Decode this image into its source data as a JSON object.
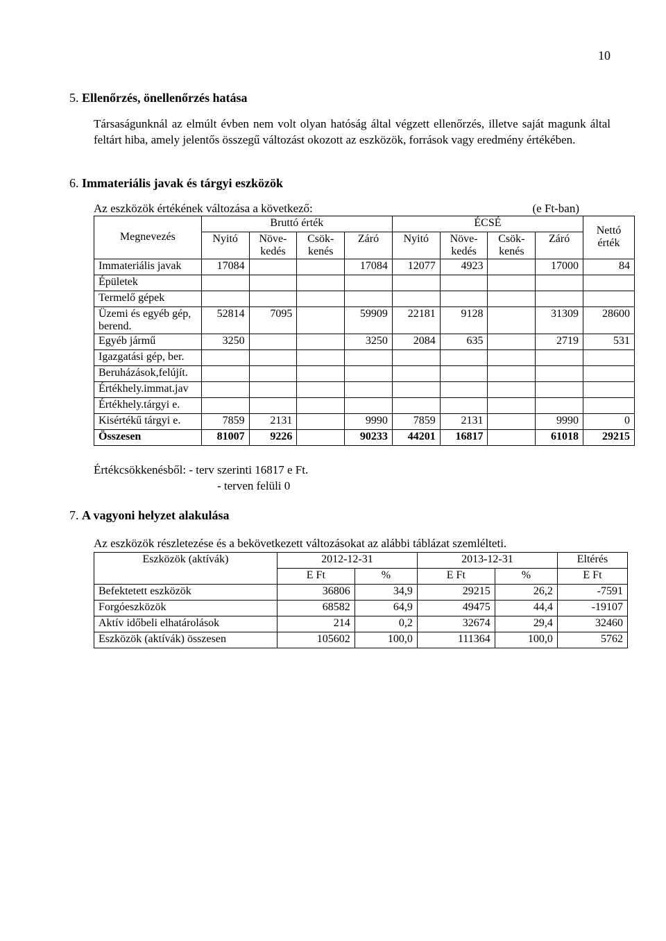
{
  "page_number": "10",
  "section5": {
    "number": "5.",
    "title": "Ellenőrzés, önellenőrzés hatása",
    "paragraph": "Társaságunknál az elmúlt évben nem volt olyan hatóság által végzett ellenőrzés, illetve saját magunk által feltárt hiba, amely jelentős összegű változást okozott az eszközök, források vagy eredmény értékében."
  },
  "section6": {
    "number": "6.",
    "title": "Immateriális javak és tárgyi eszközök",
    "intro": "Az eszközök értékének változása a következő:",
    "unit": "(e Ft-ban)",
    "headers": {
      "megnevezes": "Megnevezés",
      "brutto": "Bruttó érték",
      "ecse": "ÉCSÉ",
      "netto": "Nettó érték",
      "nyito": "Nyitó",
      "nove": "Növe-kedés",
      "csok": "Csök-kenés",
      "zaro": "Záró"
    },
    "rows": [
      {
        "label": "Immateriális javak",
        "b_ny": "17084",
        "b_no": "",
        "b_cs": "",
        "b_za": "17084",
        "e_ny": "12077",
        "e_no": "4923",
        "e_cs": "",
        "e_za": "17000",
        "netto": "84"
      },
      {
        "label": "Épületek",
        "b_ny": "",
        "b_no": "",
        "b_cs": "",
        "b_za": "",
        "e_ny": "",
        "e_no": "",
        "e_cs": "",
        "e_za": "",
        "netto": ""
      },
      {
        "label": "Termelő gépek",
        "b_ny": "",
        "b_no": "",
        "b_cs": "",
        "b_za": "",
        "e_ny": "",
        "e_no": "",
        "e_cs": "",
        "e_za": "",
        "netto": ""
      },
      {
        "label": "Üzemi és egyéb gép, berend.",
        "b_ny": "52814",
        "b_no": "7095",
        "b_cs": "",
        "b_za": "59909",
        "e_ny": "22181",
        "e_no": "9128",
        "e_cs": "",
        "e_za": "31309",
        "netto": "28600"
      },
      {
        "label": "Egyéb jármű",
        "b_ny": "3250",
        "b_no": "",
        "b_cs": "",
        "b_za": "3250",
        "e_ny": "2084",
        "e_no": "635",
        "e_cs": "",
        "e_za": "2719",
        "netto": "531"
      },
      {
        "label": "Igazgatási gép, ber.",
        "b_ny": "",
        "b_no": "",
        "b_cs": "",
        "b_za": "",
        "e_ny": "",
        "e_no": "",
        "e_cs": "",
        "e_za": "",
        "netto": ""
      },
      {
        "label": "Beruházások,felújít.",
        "b_ny": "",
        "b_no": "",
        "b_cs": "",
        "b_za": "",
        "e_ny": "",
        "e_no": "",
        "e_cs": "",
        "e_za": "",
        "netto": ""
      },
      {
        "label": "Értékhely.immat.jav",
        "b_ny": "",
        "b_no": "",
        "b_cs": "",
        "b_za": "",
        "e_ny": "",
        "e_no": "",
        "e_cs": "",
        "e_za": "",
        "netto": ""
      },
      {
        "label": "Értékhely.tárgyi e.",
        "b_ny": "",
        "b_no": "",
        "b_cs": "",
        "b_za": "",
        "e_ny": "",
        "e_no": "",
        "e_cs": "",
        "e_za": "",
        "netto": ""
      },
      {
        "label": "Kisértékű tárgyi e.",
        "b_ny": "7859",
        "b_no": "2131",
        "b_cs": "",
        "b_za": "9990",
        "e_ny": "7859",
        "e_no": "2131",
        "e_cs": "",
        "e_za": "9990",
        "netto": "0"
      }
    ],
    "total": {
      "label": "Összesen",
      "b_ny": "81007",
      "b_no": "9226",
      "b_cs": "",
      "b_za": "90233",
      "e_ny": "44201",
      "e_no": "16817",
      "e_cs": "",
      "e_za": "61018",
      "netto": "29215"
    },
    "notes_line1": "Értékcsökkenésből: - terv szerinti  16817 e Ft.",
    "notes_line2": "- terven felüli    0"
  },
  "section7": {
    "number": "7.",
    "title": "A vagyoni helyzet alakulása",
    "intro": "Az eszközök részletezése és a bekövetkezett változásokat az alábbi táblázat szemlélteti.",
    "headers": {
      "eszkozok": "Eszközök (aktívák)",
      "y2012": "2012-12-31",
      "y2013": "2013-12-31",
      "elteres": "Eltérés",
      "eft": "E Ft",
      "pct": "%"
    },
    "rows": [
      {
        "label": "Befektetett eszközök",
        "a_eft": "36806",
        "a_pct": "34,9",
        "b_eft": "29215",
        "b_pct": "26,2",
        "diff": "-7591"
      },
      {
        "label": "Forgóeszközök",
        "a_eft": "68582",
        "a_pct": "64,9",
        "b_eft": "49475",
        "b_pct": "44,4",
        "diff": "-19107"
      },
      {
        "label": "Aktív időbeli elhatárolások",
        "a_eft": "214",
        "a_pct": "0,2",
        "b_eft": "32674",
        "b_pct": "29,4",
        "diff": "32460"
      },
      {
        "label": "Eszközök (aktívák) összesen",
        "a_eft": "105602",
        "a_pct": "100,0",
        "b_eft": "111364",
        "b_pct": "100,0",
        "diff": "5762"
      }
    ]
  }
}
